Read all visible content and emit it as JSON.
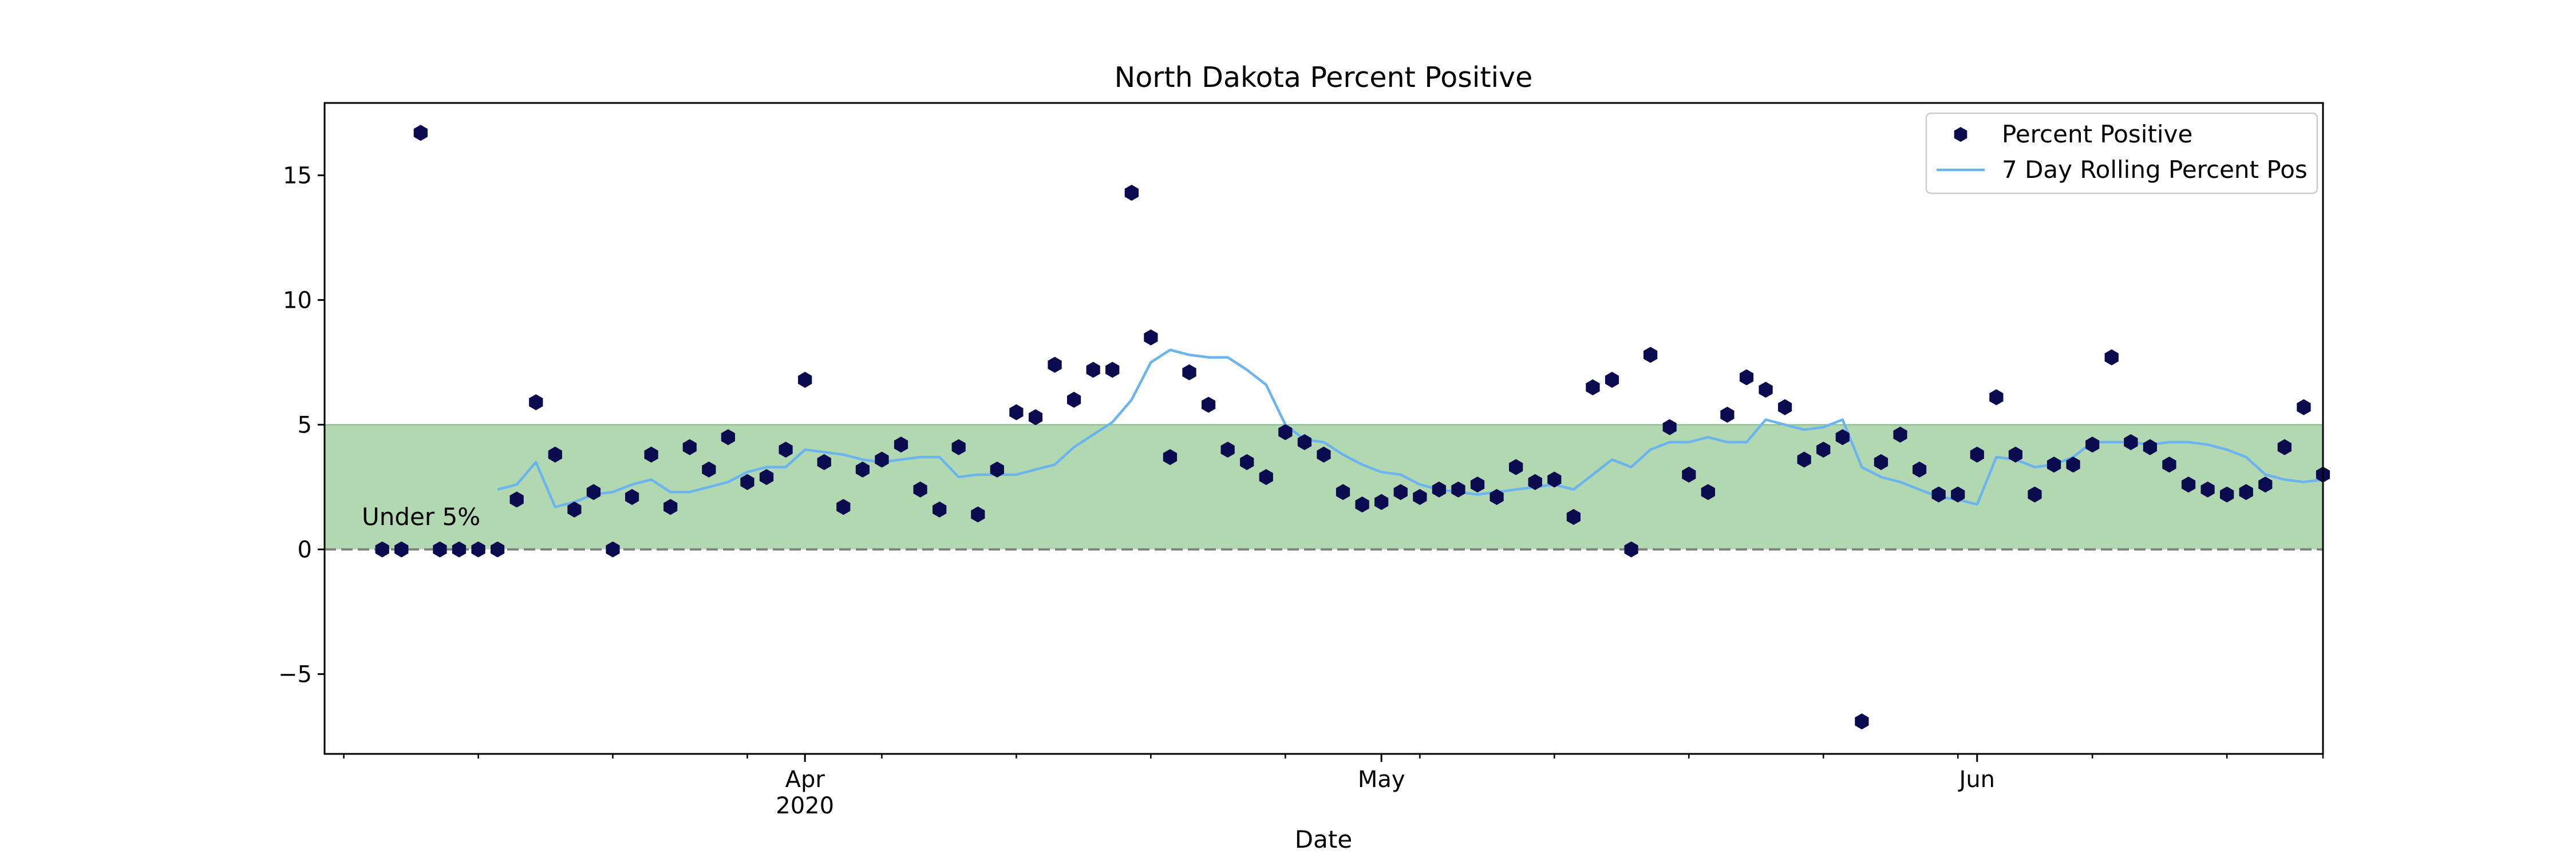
{
  "chart_data": {
    "type": "scatter",
    "title": "North Dakota Percent Positive",
    "xlabel": "Date",
    "ylabel": "",
    "xlim": [
      "2020-03-07",
      "2020-06-19"
    ],
    "ylim": [
      -8.2,
      17.9
    ],
    "grid": false,
    "legend_position": "top-right",
    "y_ticks": [
      {
        "value": 15,
        "label": "15"
      },
      {
        "value": 10,
        "label": "10"
      },
      {
        "value": 5,
        "label": "5"
      },
      {
        "value": 0,
        "label": "0"
      },
      {
        "value": -5,
        "label": "−5"
      }
    ],
    "x_major_ticks": [
      {
        "date": "2020-04-01",
        "label": "Apr",
        "sublabel": "2020"
      },
      {
        "date": "2020-05-01",
        "label": "May",
        "sublabel": ""
      },
      {
        "date": "2020-06-01",
        "label": "Jun",
        "sublabel": ""
      }
    ],
    "x_minor_ticks": [
      "2020-03-08",
      "2020-03-15",
      "2020-03-22",
      "2020-03-29",
      "2020-04-05",
      "2020-04-12",
      "2020-04-19",
      "2020-04-26",
      "2020-05-03",
      "2020-05-10",
      "2020-05-17",
      "2020-05-24",
      "2020-05-31",
      "2020-06-07",
      "2020-06-14",
      "2020-06-19"
    ],
    "band": {
      "y_from": 0,
      "y_to": 5,
      "color": "#b2d8b2",
      "label": "Under 5%"
    },
    "reference_line": {
      "y": 0,
      "color": "#808080",
      "style": "dashed"
    },
    "colors": {
      "points": "#0b0b4f",
      "rolling": "#6cb4ee"
    },
    "series": [
      {
        "name": "Percent Positive",
        "kind": "scatter",
        "x": [
          "2020-03-10",
          "2020-03-11",
          "2020-03-12",
          "2020-03-13",
          "2020-03-14",
          "2020-03-15",
          "2020-03-16",
          "2020-03-17",
          "2020-03-18",
          "2020-03-19",
          "2020-03-20",
          "2020-03-21",
          "2020-03-22",
          "2020-03-23",
          "2020-03-24",
          "2020-03-25",
          "2020-03-26",
          "2020-03-27",
          "2020-03-28",
          "2020-03-29",
          "2020-03-30",
          "2020-03-31",
          "2020-04-01",
          "2020-04-02",
          "2020-04-03",
          "2020-04-04",
          "2020-04-05",
          "2020-04-06",
          "2020-04-07",
          "2020-04-08",
          "2020-04-09",
          "2020-04-10",
          "2020-04-11",
          "2020-04-12",
          "2020-04-13",
          "2020-04-14",
          "2020-04-15",
          "2020-04-16",
          "2020-04-17",
          "2020-04-18",
          "2020-04-19",
          "2020-04-20",
          "2020-04-21",
          "2020-04-22",
          "2020-04-23",
          "2020-04-24",
          "2020-04-25",
          "2020-04-26",
          "2020-04-27",
          "2020-04-28",
          "2020-04-29",
          "2020-04-30",
          "2020-05-01",
          "2020-05-02",
          "2020-05-03",
          "2020-05-04",
          "2020-05-05",
          "2020-05-06",
          "2020-05-07",
          "2020-05-08",
          "2020-05-09",
          "2020-05-10",
          "2020-05-11",
          "2020-05-12",
          "2020-05-13",
          "2020-05-14",
          "2020-05-15",
          "2020-05-16",
          "2020-05-17",
          "2020-05-18",
          "2020-05-19",
          "2020-05-20",
          "2020-05-21",
          "2020-05-22",
          "2020-05-23",
          "2020-05-24",
          "2020-05-25",
          "2020-05-26",
          "2020-05-27",
          "2020-05-28",
          "2020-05-29",
          "2020-05-30",
          "2020-05-31",
          "2020-06-01",
          "2020-06-02",
          "2020-06-03",
          "2020-06-04",
          "2020-06-05",
          "2020-06-06",
          "2020-06-07",
          "2020-06-08",
          "2020-06-09",
          "2020-06-10",
          "2020-06-11",
          "2020-06-12",
          "2020-06-13",
          "2020-06-14",
          "2020-06-15",
          "2020-06-16",
          "2020-06-17",
          "2020-06-18",
          "2020-06-19"
        ],
        "y": [
          0,
          0,
          16.7,
          0,
          0,
          0,
          0,
          2.0,
          5.9,
          3.8,
          1.6,
          2.3,
          0,
          2.1,
          3.8,
          1.7,
          4.1,
          3.2,
          4.5,
          2.7,
          2.9,
          4.0,
          6.8,
          3.5,
          1.7,
          3.2,
          3.6,
          4.2,
          2.4,
          1.6,
          4.1,
          1.4,
          3.2,
          5.5,
          5.3,
          7.4,
          6.0,
          7.2,
          7.2,
          14.3,
          8.5,
          3.7,
          7.1,
          5.8,
          4.0,
          3.5,
          2.9,
          4.7,
          4.3,
          3.8,
          2.3,
          1.8,
          1.9,
          2.3,
          2.1,
          2.4,
          2.4,
          2.6,
          2.1,
          3.3,
          2.7,
          2.8,
          1.3,
          6.5,
          6.8,
          0,
          7.8,
          4.9,
          3.0,
          2.3,
          5.4,
          6.9,
          6.4,
          5.7,
          3.6,
          4.0,
          4.5,
          -6.9,
          3.5,
          4.6,
          3.2,
          2.2,
          2.2,
          3.8,
          6.1,
          3.8,
          2.2,
          3.4,
          3.4,
          4.2,
          7.7,
          4.3,
          4.1,
          3.4,
          2.6,
          2.4,
          2.2,
          2.3,
          2.6,
          4.1,
          5.7,
          3.0
        ]
      },
      {
        "name": "7 Day Rolling Percent Pos",
        "kind": "line",
        "x": [
          "2020-03-16",
          "2020-03-17",
          "2020-03-18",
          "2020-03-19",
          "2020-03-20",
          "2020-03-21",
          "2020-03-22",
          "2020-03-23",
          "2020-03-24",
          "2020-03-25",
          "2020-03-26",
          "2020-03-27",
          "2020-03-28",
          "2020-03-29",
          "2020-03-30",
          "2020-03-31",
          "2020-04-01",
          "2020-04-02",
          "2020-04-03",
          "2020-04-04",
          "2020-04-05",
          "2020-04-06",
          "2020-04-07",
          "2020-04-08",
          "2020-04-09",
          "2020-04-10",
          "2020-04-11",
          "2020-04-12",
          "2020-04-13",
          "2020-04-14",
          "2020-04-15",
          "2020-04-16",
          "2020-04-17",
          "2020-04-18",
          "2020-04-19",
          "2020-04-20",
          "2020-04-21",
          "2020-04-22",
          "2020-04-23",
          "2020-04-24",
          "2020-04-25",
          "2020-04-26",
          "2020-04-27",
          "2020-04-28",
          "2020-04-29",
          "2020-04-30",
          "2020-05-01",
          "2020-05-02",
          "2020-05-03",
          "2020-05-04",
          "2020-05-05",
          "2020-05-06",
          "2020-05-07",
          "2020-05-08",
          "2020-05-09",
          "2020-05-10",
          "2020-05-11",
          "2020-05-12",
          "2020-05-13",
          "2020-05-14",
          "2020-05-15",
          "2020-05-16",
          "2020-05-17",
          "2020-05-18",
          "2020-05-19",
          "2020-05-20",
          "2020-05-21",
          "2020-05-22",
          "2020-05-23",
          "2020-05-24",
          "2020-05-25",
          "2020-05-26",
          "2020-05-27",
          "2020-05-28",
          "2020-05-29",
          "2020-05-30",
          "2020-05-31",
          "2020-06-01",
          "2020-06-02",
          "2020-06-03",
          "2020-06-04",
          "2020-06-05",
          "2020-06-06",
          "2020-06-07",
          "2020-06-08",
          "2020-06-09",
          "2020-06-10",
          "2020-06-11",
          "2020-06-12",
          "2020-06-13",
          "2020-06-14",
          "2020-06-15",
          "2020-06-16",
          "2020-06-17",
          "2020-06-18",
          "2020-06-19"
        ],
        "y": [
          2.4,
          2.6,
          3.5,
          1.7,
          1.9,
          2.2,
          2.3,
          2.6,
          2.8,
          2.3,
          2.3,
          2.5,
          2.7,
          3.1,
          3.3,
          3.3,
          4.0,
          3.9,
          3.8,
          3.6,
          3.5,
          3.6,
          3.7,
          3.7,
          2.9,
          3.0,
          3.0,
          3.0,
          3.2,
          3.4,
          4.1,
          4.6,
          5.1,
          6.0,
          7.5,
          8.0,
          7.8,
          7.7,
          7.7,
          7.2,
          6.6,
          5.0,
          4.4,
          4.3,
          3.8,
          3.4,
          3.1,
          3.0,
          2.6,
          2.4,
          2.3,
          2.2,
          2.3,
          2.4,
          2.5,
          2.6,
          2.4,
          3.0,
          3.6,
          3.3,
          4.0,
          4.3,
          4.3,
          4.5,
          4.3,
          4.3,
          5.2,
          5.0,
          4.8,
          4.9,
          5.2,
          3.3,
          2.9,
          2.7,
          2.4,
          2.1,
          2.0,
          1.8,
          3.7,
          3.6,
          3.3,
          3.4,
          3.7,
          4.3,
          4.3,
          4.3,
          4.2,
          4.3,
          4.3,
          4.2,
          4.0,
          3.7,
          3.0,
          2.8,
          2.7,
          2.8
        ]
      }
    ]
  }
}
